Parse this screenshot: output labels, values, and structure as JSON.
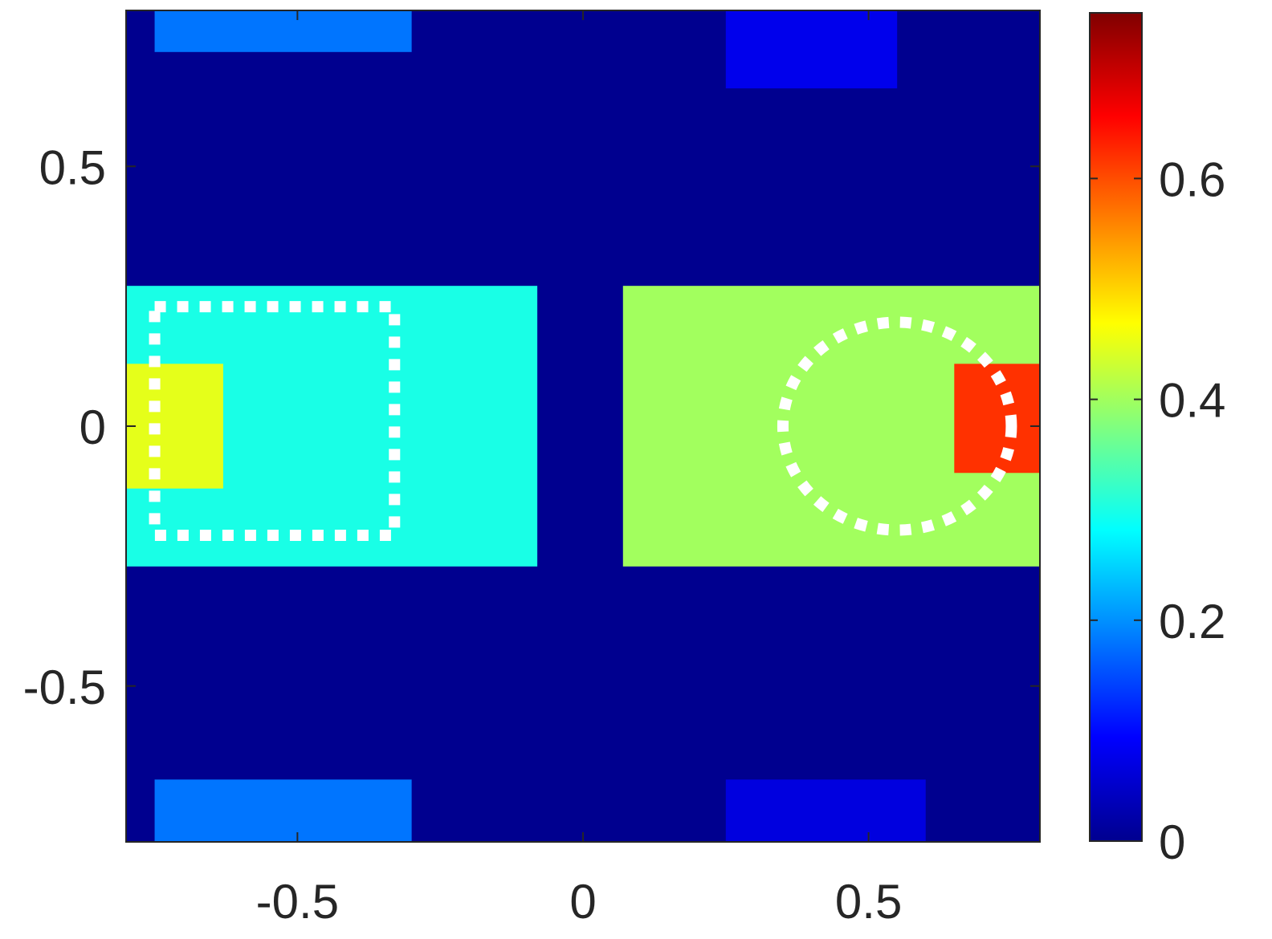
{
  "chart_data": {
    "type": "heatmap",
    "title": "",
    "xlabel": "",
    "ylabel": "",
    "xlim": [
      -0.8,
      0.8
    ],
    "ylim": [
      -0.8,
      0.8
    ],
    "x_ticks": [
      {
        "value": -0.5,
        "label": "-0.5"
      },
      {
        "value": 0,
        "label": "0"
      },
      {
        "value": 0.5,
        "label": "0.5"
      }
    ],
    "y_ticks": [
      {
        "value": 0.5,
        "label": "0.5"
      },
      {
        "value": 0,
        "label": "0"
      },
      {
        "value": -0.5,
        "label": "-0.5"
      }
    ],
    "colormap": "jet",
    "colorbar": {
      "range": [
        0,
        0.75
      ],
      "ticks": [
        {
          "value": 0,
          "label": "0"
        },
        {
          "value": 0.2,
          "label": "0.2"
        },
        {
          "value": 0.4,
          "label": "0.4"
        },
        {
          "value": 0.6,
          "label": "0.6"
        }
      ]
    },
    "regions": [
      {
        "shape": "top-left streak",
        "x": [
          -0.75,
          -0.3
        ],
        "y": [
          0.72,
          0.8
        ],
        "value": 0.18
      },
      {
        "shape": "top-right streak",
        "x": [
          0.25,
          0.55
        ],
        "y": [
          0.65,
          0.8
        ],
        "value": 0.08
      },
      {
        "shape": "bottom-left streak",
        "x": [
          -0.75,
          -0.3
        ],
        "y": [
          -0.8,
          -0.68
        ],
        "value": 0.18
      },
      {
        "shape": "bottom-right streak",
        "x": [
          0.25,
          0.6
        ],
        "y": [
          -0.8,
          -0.68
        ],
        "value": 0.07
      },
      {
        "shape": "left lobe body",
        "x": [
          -0.8,
          -0.08
        ],
        "y": [
          -0.27,
          0.27
        ],
        "value": 0.3
      },
      {
        "shape": "left lobe hot spot",
        "x": [
          -0.8,
          -0.63
        ],
        "y": [
          -0.12,
          0.12
        ],
        "value": 0.45
      },
      {
        "shape": "right lobe body",
        "x": [
          0.07,
          0.8
        ],
        "y": [
          -0.27,
          0.27
        ],
        "value": 0.4
      },
      {
        "shape": "right lobe hot spot",
        "x": [
          0.65,
          0.8
        ],
        "y": [
          -0.09,
          0.12
        ],
        "value": 0.62
      }
    ],
    "annotations": [
      {
        "type": "dotted-rectangle",
        "color": "#ffffff",
        "x": [
          -0.75,
          -0.33
        ],
        "y": [
          -0.21,
          0.23
        ]
      },
      {
        "type": "dotted-circle",
        "color": "#ffffff",
        "center": [
          0.55,
          0.0
        ],
        "radius": 0.2
      }
    ]
  }
}
